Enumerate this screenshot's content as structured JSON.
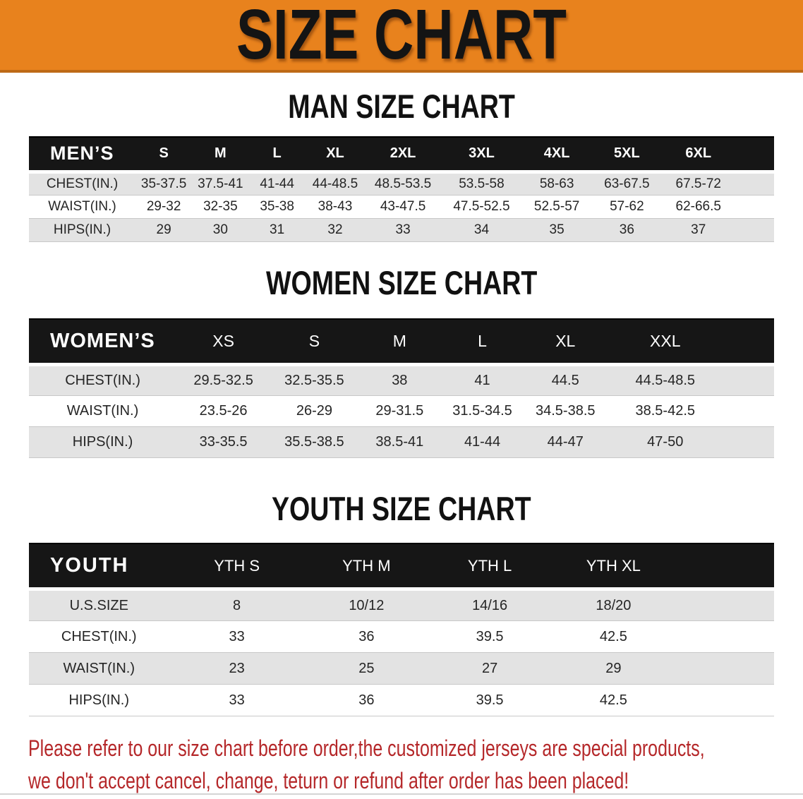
{
  "banner": {
    "title": "SIZE CHART"
  },
  "sections": {
    "men": {
      "heading": "MAN SIZE CHART"
    },
    "women": {
      "heading": "WOMEN SIZE CHART"
    },
    "youth": {
      "heading": "YOUTH SIZE CHART"
    }
  },
  "men_table": {
    "label": "MEN’S",
    "columns": [
      "S",
      "M",
      "L",
      "XL",
      "2XL",
      "3XL",
      "4XL",
      "5XL",
      "6XL"
    ],
    "rows": [
      {
        "label": "CHEST(IN.)",
        "values": [
          "35-37.5",
          "37.5-41",
          "41-44",
          "44-48.5",
          "48.5-53.5",
          "53.5-58",
          "58-63",
          "63-67.5",
          "67.5-72"
        ]
      },
      {
        "label": "WAIST(IN.)",
        "values": [
          "29-32",
          "32-35",
          "35-38",
          "38-43",
          "43-47.5",
          "47.5-52.5",
          "52.5-57",
          "57-62",
          "62-66.5"
        ]
      },
      {
        "label": "HIPS(IN.)",
        "values": [
          "29",
          "30",
          "31",
          "32",
          "33",
          "34",
          "35",
          "36",
          "37"
        ]
      }
    ]
  },
  "women_table": {
    "label": "WOMEN’S",
    "columns": [
      "XS",
      "S",
      "M",
      "L",
      "XL",
      "XXL"
    ],
    "rows": [
      {
        "label": "CHEST(IN.)",
        "values": [
          "29.5-32.5",
          "32.5-35.5",
          "38",
          "41",
          "44.5",
          "44.5-48.5"
        ]
      },
      {
        "label": "WAIST(IN.)",
        "values": [
          "23.5-26",
          "26-29",
          "29-31.5",
          "31.5-34.5",
          "34.5-38.5",
          "38.5-42.5"
        ]
      },
      {
        "label": "HIPS(IN.)",
        "values": [
          "33-35.5",
          "35.5-38.5",
          "38.5-41",
          "41-44",
          "44-47",
          "47-50"
        ]
      }
    ]
  },
  "youth_table": {
    "label": "YOUTH",
    "columns": [
      "YTH S",
      "YTH M",
      "YTH L",
      "YTH XL"
    ],
    "rows": [
      {
        "label": "U.S.SIZE",
        "values": [
          "8",
          "10/12",
          "14/16",
          "18/20"
        ]
      },
      {
        "label": "CHEST(IN.)",
        "values": [
          "33",
          "36",
          "39.5",
          "42.5"
        ]
      },
      {
        "label": "WAIST(IN.)",
        "values": [
          "23",
          "25",
          "27",
          "29"
        ]
      },
      {
        "label": "HIPS(IN.)",
        "values": [
          "33",
          "36",
          "39.5",
          "42.5"
        ]
      }
    ]
  },
  "notes": {
    "line1": "Please refer to our size chart before order,the customized jerseys are special products,",
    "line2": "we don't accept cancel, change, teturn or refund after order has been placed!"
  },
  "colors": {
    "banner_bg": "#E8821D",
    "banner_edge": "#BE6A16",
    "table_header_bg": "#161616",
    "row_stripe": "#E3E3E3",
    "note_text": "#B5282A"
  }
}
